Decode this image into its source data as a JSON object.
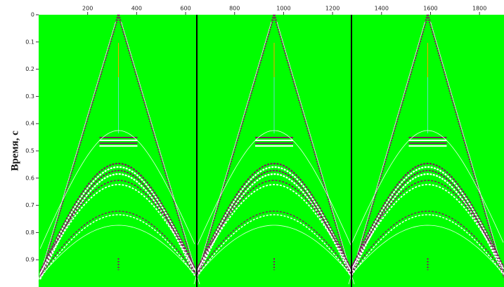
{
  "chart_data": {
    "type": "seismic",
    "ylabel": "Время, с",
    "xlim": [
      0,
      1900
    ],
    "xticks": [
      200,
      400,
      600,
      800,
      1000,
      1200,
      1400,
      1600,
      1800
    ],
    "ylim": [
      0,
      1
    ],
    "yticks": [
      0,
      0.1,
      0.2,
      0.3,
      0.4,
      0.5,
      0.6,
      0.7,
      0.8,
      0.9
    ],
    "background": "#00ff00",
    "event_color": "#7a1f5c"
  }
}
